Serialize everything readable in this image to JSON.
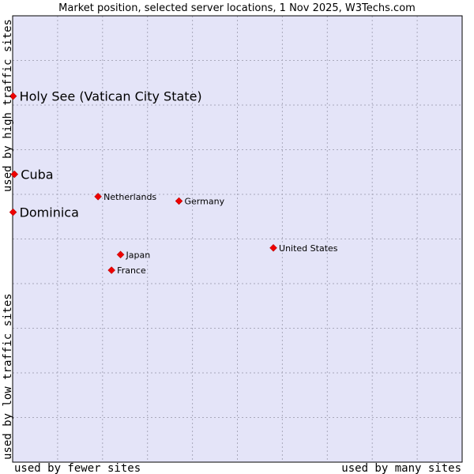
{
  "chart_data": {
    "type": "scatter",
    "title": "Market position, selected server locations, 1 Nov 2025, W3Techs.com",
    "xlabel_low": "used by fewer sites",
    "xlabel_high": "used by many sites",
    "ylabel_low": "used by low traffic sites",
    "ylabel_high": "used by high traffic sites",
    "xlim": [
      0,
      100
    ],
    "ylim": [
      0,
      100
    ],
    "grid": true,
    "plot_background": "#e4e4f8",
    "grid_color": "#a9a9bb",
    "point_color": "#ee0000",
    "points": [
      {
        "name": "Holy See (Vatican City State)",
        "x": 0.1,
        "y": 82,
        "emphasis": true
      },
      {
        "name": "Cuba",
        "x": 0.4,
        "y": 64.5,
        "emphasis": true
      },
      {
        "name": "Dominica",
        "x": 0.1,
        "y": 56,
        "emphasis": true
      },
      {
        "name": "Netherlands",
        "x": 19,
        "y": 59.5,
        "emphasis": false
      },
      {
        "name": "Germany",
        "x": 37,
        "y": 58.5,
        "emphasis": false
      },
      {
        "name": "United States",
        "x": 58,
        "y": 48,
        "emphasis": false
      },
      {
        "name": "Japan",
        "x": 24,
        "y": 46.5,
        "emphasis": false
      },
      {
        "name": "France",
        "x": 22,
        "y": 43,
        "emphasis": false
      }
    ]
  }
}
